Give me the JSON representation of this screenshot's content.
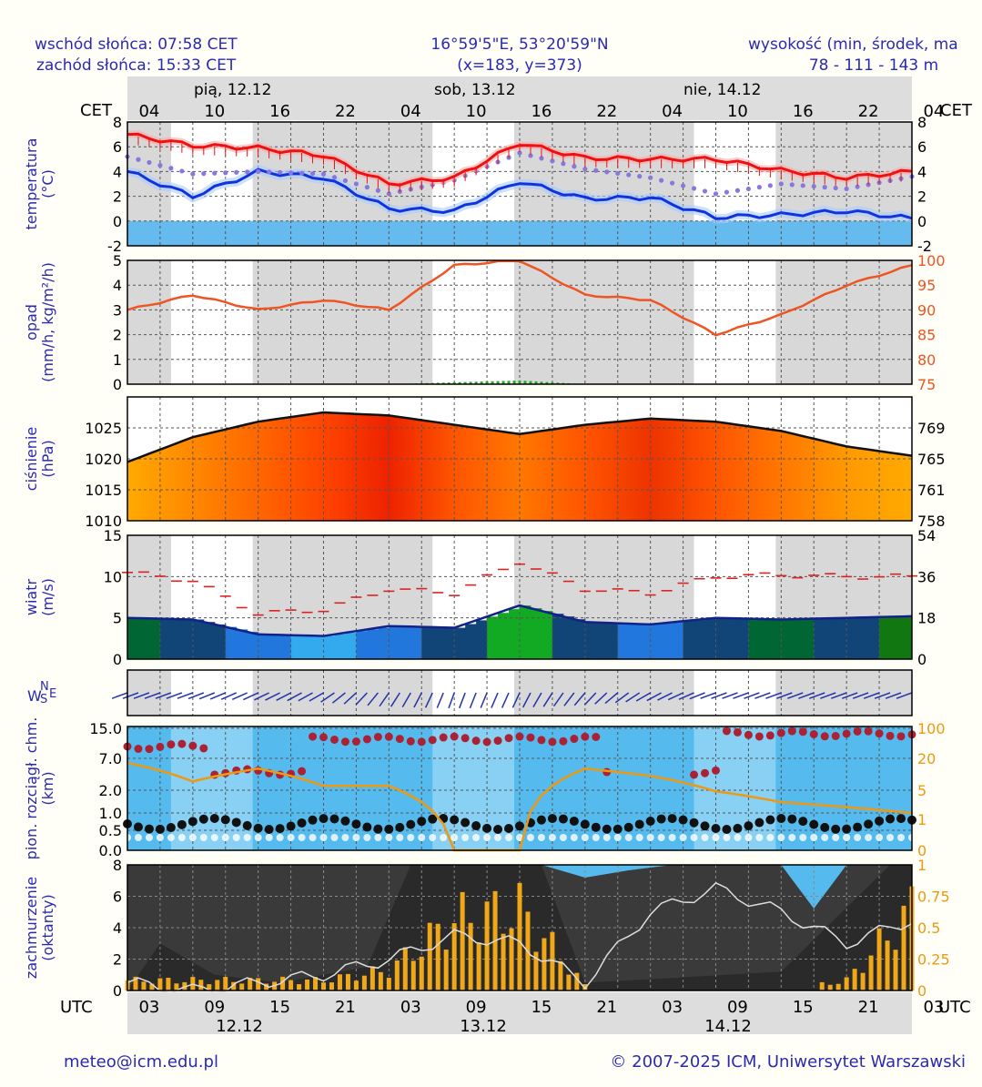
{
  "header": {
    "sunrise": "wschód słońca: 07:58 CET",
    "sunset": "zachód słońca: 15:33 CET",
    "coords": "16°59'5\"E, 53°20'59\"N",
    "grid": "(x=183,  y=373)",
    "elevation_title": "wysokość (min, środek, ma",
    "elevation_values": "78 - 111 - 143 m"
  },
  "time_axis": {
    "top_label": "CET",
    "top_label_right": "CET",
    "bottom_label": "UTC",
    "bottom_label_right": "UTC",
    "day_labels_top": [
      "pią, 12.12",
      "sob, 13.12",
      "nie, 14.12"
    ],
    "cet_ticks": [
      "04",
      "10",
      "16",
      "22",
      "04",
      "10",
      "16",
      "22",
      "04",
      "10",
      "16",
      "22",
      "04"
    ],
    "utc_ticks": [
      "03",
      "09",
      "15",
      "21",
      "03",
      "09",
      "15",
      "21",
      "03",
      "09",
      "15",
      "21",
      "03"
    ],
    "day_labels_bottom": [
      "12.12",
      "13.12",
      "14.12"
    ]
  },
  "footer": {
    "email": "meteo@icm.edu.pl",
    "copyright": "© 2007-2025 ICM, Uniwersytet Warszawski"
  },
  "colors": {
    "temperature": "#ee1111",
    "dewpoint": "#1133dd",
    "perceived": "#8877dd",
    "humidity": "#ee5522",
    "precip": "#22aa22",
    "pressure_line": "#111111",
    "wind_gust": "#dd2222",
    "cloud_high": "#aa2233",
    "cloud_low": "#111111",
    "visibility": "#ee9911",
    "fog_bar": "#f0a818",
    "axis_label": "#2a2ab0",
    "right_axis_alt": "#ee5522"
  },
  "chart_data": [
    {
      "type": "line",
      "name": "temperature",
      "ylabel": "temperatura (°C)",
      "ylim": [
        -2,
        8
      ],
      "yticks": [
        -2,
        0,
        2,
        4,
        6,
        8
      ],
      "x_hours_cet": [
        0,
        6,
        12,
        18,
        24,
        30,
        36,
        42,
        48,
        54,
        60,
        66,
        72
      ],
      "series": [
        {
          "values": [
            7.0,
            6.1,
            5.9,
            5.3,
            3.0,
            3.5,
            6.3,
            5.1,
            5.0,
            5.0,
            4.1,
            3.5,
            4.0
          ]
        },
        {
          "values": [
            5.2,
            3.8,
            4.0,
            3.8,
            2.2,
            3.3,
            5.5,
            4.2,
            3.5,
            2.2,
            3.0,
            2.6,
            3.6
          ]
        },
        {
          "values": [
            4.0,
            2.0,
            4.0,
            3.5,
            1.0,
            0.8,
            3.2,
            1.8,
            1.9,
            0.3,
            0.5,
            0.8,
            0.2
          ]
        }
      ]
    },
    {
      "type": "line",
      "name": "precipitation_humidity",
      "ylabel": "opad (mm/h, kg/m²/h)",
      "ylim": [
        0,
        5
      ],
      "yticks": [
        0,
        1,
        2,
        3,
        4,
        5
      ],
      "right_ylim": [
        75,
        100
      ],
      "right_yticks": [
        75,
        80,
        85,
        90,
        95,
        100
      ],
      "x_hours_cet": [
        0,
        6,
        12,
        18,
        24,
        30,
        36,
        42,
        48,
        54,
        60,
        66,
        72
      ],
      "series": [
        {
          "values": [
            90,
            93,
            90,
            92,
            90,
            99,
            100,
            93,
            92,
            85,
            89,
            95,
            99
          ]
        },
        {
          "values": [
            0,
            0,
            0,
            0,
            0,
            0.05,
            0.1,
            0,
            0,
            0,
            0,
            0,
            0
          ]
        }
      ]
    },
    {
      "type": "area",
      "name": "pressure",
      "ylabel": "ciśnienie (hPa)",
      "ylim": [
        1010,
        1030
      ],
      "yticks": [
        1010,
        1015,
        1020,
        1025
      ],
      "right_yticks": [
        758,
        761,
        765,
        769
      ],
      "x_hours_cet": [
        0,
        6,
        12,
        18,
        24,
        30,
        36,
        42,
        48,
        54,
        60,
        66,
        72
      ],
      "values": [
        1019.5,
        1023.5,
        1026.0,
        1027.5,
        1027.0,
        1025.5,
        1024.0,
        1025.5,
        1026.5,
        1026.0,
        1024.5,
        1022.0,
        1020.5
      ]
    },
    {
      "type": "line",
      "name": "wind",
      "ylabel": "wiatr (m/s)",
      "ylim": [
        0,
        15
      ],
      "yticks": [
        0,
        5,
        10,
        15
      ],
      "right_yticks": [
        0,
        18,
        36,
        54
      ],
      "x_hours_cet": [
        0,
        6,
        12,
        18,
        24,
        30,
        36,
        42,
        48,
        54,
        60,
        66,
        72
      ],
      "series": [
        {
          "values": [
            5.0,
            4.8,
            3.0,
            2.8,
            4.0,
            3.8,
            6.5,
            4.5,
            4.2,
            5.0,
            4.8,
            5.0,
            5.2
          ]
        },
        {
          "values": [
            10.5,
            9.5,
            5.5,
            6.0,
            8.5,
            8.0,
            11.8,
            8.5,
            8.0,
            10.0,
            10.2,
            10.0,
            10.0
          ]
        }
      ]
    },
    {
      "type": "scatter",
      "name": "wind_direction",
      "ylabel": "WNES",
      "x_hours_cet": [
        0,
        6,
        12,
        18,
        24,
        30,
        36,
        42,
        48,
        54,
        60,
        66,
        72
      ],
      "values": [
        250,
        250,
        245,
        240,
        215,
        200,
        205,
        220,
        240,
        250,
        250,
        250,
        250
      ]
    },
    {
      "type": "scatter",
      "name": "clouds_visibility",
      "ylabel": "pion. rozciągł. chm. (km)",
      "yticks": [
        "0.0",
        "0.5",
        "1.0",
        "2.0",
        "7.0",
        "15.0"
      ],
      "right_yticks": [
        0,
        1,
        5,
        20,
        100
      ],
      "x_hours_cet": [
        0,
        6,
        12,
        18,
        24,
        30,
        36,
        42,
        48,
        54,
        60,
        66,
        72
      ],
      "series": [
        {
          "values": [
            25,
            12,
            20,
            10,
            10,
            0,
            0,
            20,
            15,
            8,
            5,
            4,
            3
          ]
        }
      ]
    },
    {
      "type": "bar",
      "name": "cloud_cover",
      "ylabel": "zachmurzenie (oktanty)",
      "ylim": [
        0,
        8
      ],
      "yticks": [
        0,
        2,
        4,
        6,
        8
      ],
      "right_yticks": [
        "0",
        "0.25",
        "0.5",
        "0.75",
        "1"
      ],
      "x_hours_cet": [
        0,
        6,
        12,
        18,
        24,
        30,
        36,
        42,
        48,
        54,
        60,
        66,
        72
      ],
      "series": [
        {
          "values": [
            0.1,
            0.1,
            0.1,
            0.1,
            0.2,
            0.7,
            0.8,
            0.05,
            0.0,
            0.0,
            0.0,
            0.1,
            0.8
          ]
        },
        {
          "values": [
            0.5,
            0.0,
            0.5,
            1.0,
            2.0,
            3.5,
            3.0,
            0.5,
            5.0,
            6.5,
            5.0,
            3.0,
            4.5
          ]
        }
      ]
    }
  ]
}
